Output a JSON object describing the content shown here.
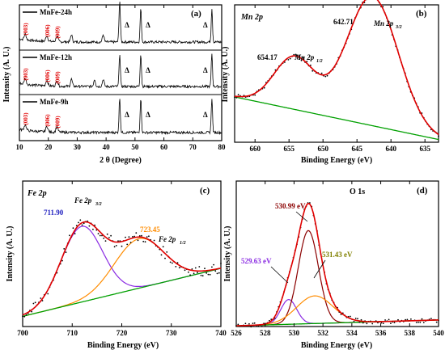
{
  "chart_data": [
    {
      "type": "line",
      "panel_label": "(a)",
      "xlabel": "2 θ (Degree)",
      "ylabel": "Intensity (A. U.)",
      "xlim": [
        10,
        80
      ],
      "x_ticks": [
        "10",
        "20",
        "30",
        "40",
        "50",
        "60",
        "70",
        "80"
      ],
      "series": [
        {
          "name": "MnFe-24h",
          "hkl_labels": [
            {
              "text": "(003)",
              "x": 12.0
            },
            {
              "text": "(006)",
              "x": 19.5
            },
            {
              "text": "(009)",
              "x": 23.0
            }
          ],
          "peaks_hkl": [
            12.0,
            19.5,
            23.0
          ],
          "peaks_other": [
            28,
            39.0,
            44.7
          ],
          "strong_peaks": [
            44.7,
            52.0,
            76.6
          ],
          "delta_marks": [
            44.7,
            52.0,
            76.6
          ]
        },
        {
          "name": "MnFe-12h",
          "hkl_labels": [
            {
              "text": "(003)",
              "x": 12.0
            },
            {
              "text": "(006)",
              "x": 19.5
            },
            {
              "text": "(009)",
              "x": 23.0
            }
          ],
          "peaks_hkl": [
            12.0,
            19.5,
            23.0
          ],
          "peaks_other": [
            28,
            36.0,
            39.0
          ],
          "strong_peaks": [
            44.7,
            52.0,
            76.6
          ],
          "delta_marks": [
            44.7,
            52.0,
            76.6
          ]
        },
        {
          "name": "MnFe-9h",
          "hkl_labels": [
            {
              "text": "(003)",
              "x": 12.0
            },
            {
              "text": "(006)",
              "x": 19.5
            },
            {
              "text": "(009)",
              "x": 23.0
            }
          ],
          "peaks_hkl": [
            12.0,
            19.5,
            23.0
          ],
          "peaks_other": [],
          "strong_peaks": [
            44.7,
            52.0,
            76.6
          ],
          "delta_marks": [
            44.7,
            52.0,
            76.6
          ]
        }
      ],
      "delta_symbol": "Δ",
      "hkl_color": "#e00000"
    },
    {
      "type": "line",
      "panel_label": "(b)",
      "title": "Mn 2p",
      "xlabel": "Binding Energy (eV)",
      "ylabel": "Intensity (A. U.)",
      "xlim": [
        663,
        633
      ],
      "x_reversed": true,
      "x_ticks": [
        "660",
        "655",
        "650",
        "645",
        "640",
        "635"
      ],
      "peaks": [
        {
          "value_label": "654.17",
          "orbital": "Mn 2p",
          "subscript": "1/2",
          "center": 654.17,
          "height": 0.38,
          "width": 3.0
        },
        {
          "value_label": "642.71",
          "orbital": "Mn 2p",
          "subscript": "3/2",
          "center": 642.71,
          "height": 0.94,
          "width": 3.8
        }
      ],
      "background": {
        "start": 0.33,
        "end": 0.02
      },
      "colors": {
        "fit": "#e00000",
        "background": "#00a000",
        "data": "#000000"
      }
    },
    {
      "type": "line",
      "panel_label": "(c)",
      "title": "Fe 2p",
      "xlabel": "Binding Energy (eV)",
      "ylabel": "Intensity (A. U.)",
      "xlim": [
        700,
        740
      ],
      "x_ticks": [
        "700",
        "710",
        "720",
        "730",
        "740"
      ],
      "peaks": [
        {
          "value_label": "711.90",
          "orbital": "Fe 2p",
          "subscript": "3/2",
          "center": 711.9,
          "height": 0.52,
          "width": 4.2,
          "color": "#8a2be2",
          "label_color": "#2020c0"
        },
        {
          "value_label": "723.45",
          "orbital": "Fe 2p",
          "subscript": "1/2",
          "center": 723.45,
          "height": 0.34,
          "width": 5.0,
          "color": "#ff8c00",
          "label_color": "#ff8c00"
        }
      ],
      "background": {
        "start": 0.07,
        "end": 0.4
      },
      "colors": {
        "fit": "#e00000",
        "background": "#00a000",
        "data": "#000000"
      }
    },
    {
      "type": "line",
      "panel_label": "(d)",
      "title": "O 1s",
      "xlabel": "Binding Energy (eV)",
      "ylabel": "Intensity (A. U.)",
      "xlim": [
        526,
        540
      ],
      "x_ticks": [
        "526",
        "528",
        "530",
        "532",
        "534",
        "536",
        "538",
        "540"
      ],
      "peaks": [
        {
          "value_label": "529.63 eV",
          "center": 529.63,
          "height": 0.17,
          "width": 0.55,
          "color": "#8a2be2",
          "label_color": "#8a2be2"
        },
        {
          "value_label": "530.99 eV",
          "center": 530.99,
          "height": 0.64,
          "width": 0.7,
          "color": "#8b0000",
          "label_color": "#8b0000"
        },
        {
          "value_label": "531.43 eV",
          "center": 531.43,
          "height": 0.19,
          "width": 1.25,
          "color": "#ff8c00",
          "label_color": "#808000"
        }
      ],
      "background": {
        "start": 0.005,
        "end": 0.045
      },
      "colors": {
        "fit": "#e00000",
        "background": "#00a000",
        "data": "#000000"
      }
    }
  ]
}
